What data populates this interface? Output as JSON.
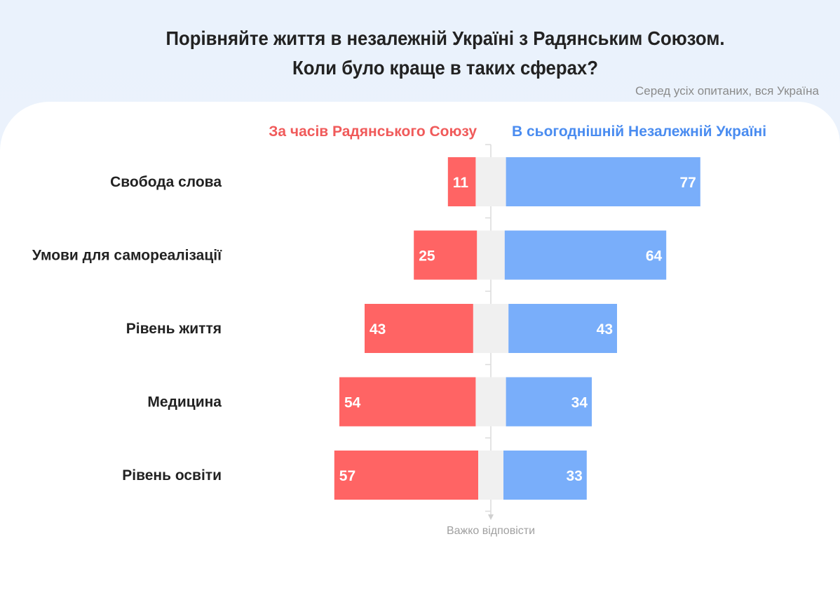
{
  "title_line1": "Порівняйте життя в незалежній Україні з Радянським Союзом.",
  "title_line2": "Коли було краще в таких сферах?",
  "subtitle": "Серед усіх опитаних, вся Україна",
  "chart_data": {
    "type": "bar",
    "orientation": "horizontal-diverging",
    "categories": [
      "Свобода слова",
      "Умови для самореалізації",
      "Рівень життя",
      "Медицина",
      "Рівень освіти"
    ],
    "series": [
      {
        "name": "За часів Радянського Союзу",
        "color": "#ff6464",
        "values": [
          11,
          25,
          43,
          54,
          57
        ]
      },
      {
        "name": "Важко відповісти",
        "color": "#f0f0f0",
        "values": [
          12,
          11,
          14,
          12,
          10
        ]
      },
      {
        "name": "В сьогоднішній Незалежній Україні",
        "color": "#79aefa",
        "values": [
          77,
          64,
          43,
          34,
          33
        ]
      }
    ],
    "legend_colors": {
      "left": "#f05a5a",
      "right": "#4a8cf0"
    }
  }
}
